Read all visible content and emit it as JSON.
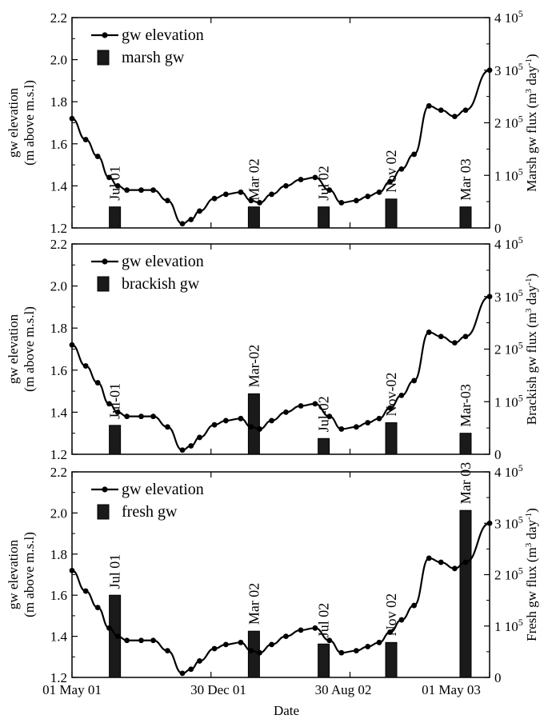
{
  "chart_data": [
    {
      "type": "bar+line",
      "panel": "marsh",
      "ylabel_left": [
        "gw elevation",
        "(m above m.s.l)"
      ],
      "ylabel_right": "Marsh gw flux (m3 day-1)",
      "ylabel_right_parts": {
        "name": "Marsh gw flux (m",
        "sup1": "3",
        "mid": " day",
        "sup2": "-1",
        "end": ")"
      },
      "left_ylim": [
        1.2,
        2.2
      ],
      "right_ylim": [
        0,
        400000
      ],
      "legend": [
        "gw elevation",
        "marsh gw"
      ],
      "bar_labels": [
        "Jul 01",
        "Mar 02",
        "Jul 02",
        "Nov 02",
        "Mar 03"
      ],
      "bar_values": [
        40000,
        40000,
        40000,
        55000,
        40000
      ]
    },
    {
      "type": "bar+line",
      "panel": "brackish",
      "ylabel_left": [
        "gw elevation",
        "(m above m.s.l)"
      ],
      "ylabel_right": "Brackish gw flux (m3 day-1)",
      "ylabel_right_parts": {
        "name": "Brackish gw flux (m",
        "sup1": "3",
        "mid": " day",
        "sup2": "-1",
        "end": ")"
      },
      "left_ylim": [
        1.2,
        2.2
      ],
      "right_ylim": [
        0,
        400000
      ],
      "legend": [
        "gw elevation",
        "brackish gw"
      ],
      "bar_labels": [
        "Jul-01",
        "Mar-02",
        "Jul-02",
        "Nov-02",
        "Mar-03"
      ],
      "bar_values": [
        55000,
        115000,
        30000,
        60000,
        40000
      ]
    },
    {
      "type": "bar+line",
      "panel": "fresh",
      "ylabel_left": [
        "gw elevation",
        "(m above m.s.l)"
      ],
      "ylabel_right": "Fresh gw flux (m3 day-1)",
      "ylabel_right_parts": {
        "name": "Fresh gw flux (m",
        "sup1": "3",
        "mid": " day",
        "sup2": "-1",
        "end": ")"
      },
      "left_ylim": [
        1.2,
        2.2
      ],
      "right_ylim": [
        0,
        400000
      ],
      "legend": [
        "gw elevation",
        "fresh gw"
      ],
      "bar_labels": [
        "Jul 01",
        "Mar 02",
        "Jul 02",
        "Nov 02",
        "Mar 03"
      ],
      "bar_values": [
        160000,
        90000,
        65000,
        68000,
        325000
      ]
    }
  ],
  "shared": {
    "xlabel": "Date",
    "x_tick_labels": [
      "01 May 01",
      "30 Dec 01",
      "30 Aug 02",
      "01 May 03"
    ],
    "x_tick_dates": [
      "2001-05-01",
      "2001-12-30",
      "2002-08-30",
      "2003-05-01"
    ],
    "left_ticks": [
      "1.2",
      "1.4",
      "1.6",
      "1.8",
      "2.0",
      "2.2"
    ],
    "right_ticks": [
      {
        "base": "0",
        "exp": ""
      },
      {
        "base": "1 10",
        "exp": "5"
      },
      {
        "base": "2 10",
        "exp": "5"
      },
      {
        "base": "3 10",
        "exp": "5"
      },
      {
        "base": "4 10",
        "exp": "5"
      }
    ],
    "bar_dates": [
      "2001-07-15",
      "2002-03-15",
      "2002-07-15",
      "2002-11-10",
      "2003-03-20"
    ],
    "gw_elevation": {
      "dates": [
        "2001-05-01",
        "2001-05-25",
        "2001-06-15",
        "2001-07-05",
        "2001-07-20",
        "2001-08-05",
        "2001-08-30",
        "2001-09-20",
        "2001-10-15",
        "2001-11-10",
        "2001-11-25",
        "2001-12-10",
        "2002-01-05",
        "2002-01-25",
        "2002-02-20",
        "2002-03-10",
        "2002-03-25",
        "2002-04-15",
        "2002-05-10",
        "2002-06-05",
        "2002-06-30",
        "2002-07-25",
        "2002-08-15",
        "2002-09-10",
        "2002-09-30",
        "2002-10-20",
        "2002-11-08",
        "2002-11-28",
        "2002-12-20",
        "2003-01-15",
        "2003-02-05",
        "2003-03-01",
        "2003-03-20",
        "2003-05-01"
      ],
      "values": [
        1.72,
        1.62,
        1.54,
        1.44,
        1.4,
        1.38,
        1.38,
        1.38,
        1.33,
        1.22,
        1.24,
        1.28,
        1.34,
        1.36,
        1.37,
        1.33,
        1.32,
        1.36,
        1.4,
        1.43,
        1.44,
        1.38,
        1.32,
        1.33,
        1.35,
        1.37,
        1.42,
        1.48,
        1.55,
        1.78,
        1.76,
        1.73,
        1.76,
        1.95
      ]
    }
  }
}
